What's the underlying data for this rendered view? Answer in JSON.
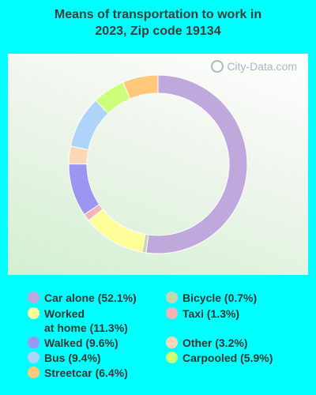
{
  "title_lines": [
    "Means of transportation to work in",
    "2023, Zip code 19134"
  ],
  "watermark": "City-Data.com",
  "chart_data": {
    "type": "pie",
    "variant": "donut",
    "title": "Means of transportation to work in 2023, Zip code 19134",
    "slices": [
      {
        "label": "Car alone (52.1%)",
        "value": 52.1,
        "color": "#bfa8dc"
      },
      {
        "label": "Bicycle (0.7%)",
        "value": 0.7,
        "color": "#c4d8b0"
      },
      {
        "label": "Worked\nat home (11.3%)",
        "value": 11.3,
        "color": "#ffff99"
      },
      {
        "label": "Taxi (1.3%)",
        "value": 1.3,
        "color": "#f2b4b4"
      },
      {
        "label": "Walked (9.6%)",
        "value": 9.6,
        "color": "#9b96f2"
      },
      {
        "label": "Other (3.2%)",
        "value": 3.2,
        "color": "#fcd7b6"
      },
      {
        "label": "Bus (9.4%)",
        "value": 9.4,
        "color": "#aed4fa"
      },
      {
        "label": "Carpooled (5.9%)",
        "value": 5.9,
        "color": "#ccff7a"
      },
      {
        "label": "Streetcar (6.4%)",
        "value": 6.4,
        "color": "#ffc87a"
      }
    ],
    "legend_position": "bottom"
  }
}
